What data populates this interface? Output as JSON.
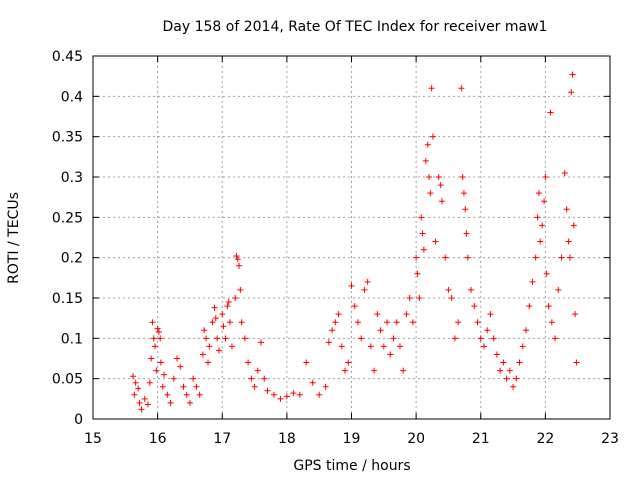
{
  "chart_data": {
    "type": "scatter",
    "title": "Day 158 of 2014, Rate Of TEC Index for receiver maw1",
    "xlabel": "GPS time / hours",
    "ylabel": "ROTI / TECUs",
    "xlim": [
      15,
      23
    ],
    "ylim": [
      0,
      0.45
    ],
    "x_ticks": [
      "15",
      "16",
      "17",
      "18",
      "19",
      "20",
      "21",
      "22",
      "23"
    ],
    "y_ticks": [
      "0",
      "0.05",
      "0.1",
      "0.15",
      "0.2",
      "0.25",
      "0.3",
      "0.35",
      "0.4",
      "0.45"
    ],
    "grid": true,
    "marker": "plus",
    "color": "#ff0000",
    "series": [
      {
        "name": "maw1",
        "points": [
          [
            15.62,
            0.053
          ],
          [
            15.64,
            0.03
          ],
          [
            15.66,
            0.045
          ],
          [
            15.7,
            0.038
          ],
          [
            15.72,
            0.02
          ],
          [
            15.75,
            0.012
          ],
          [
            15.8,
            0.025
          ],
          [
            15.85,
            0.018
          ],
          [
            15.88,
            0.045
          ],
          [
            15.9,
            0.075
          ],
          [
            15.92,
            0.12
          ],
          [
            15.94,
            0.1
          ],
          [
            15.96,
            0.09
          ],
          [
            15.98,
            0.06
          ],
          [
            16.0,
            0.112
          ],
          [
            16.02,
            0.108
          ],
          [
            16.04,
            0.1
          ],
          [
            16.05,
            0.07
          ],
          [
            16.08,
            0.04
          ],
          [
            16.1,
            0.055
          ],
          [
            16.15,
            0.03
          ],
          [
            16.2,
            0.02
          ],
          [
            16.25,
            0.05
          ],
          [
            16.3,
            0.075
          ],
          [
            16.35,
            0.065
          ],
          [
            16.4,
            0.04
          ],
          [
            16.45,
            0.03
          ],
          [
            16.5,
            0.02
          ],
          [
            16.55,
            0.05
          ],
          [
            16.6,
            0.04
          ],
          [
            16.65,
            0.03
          ],
          [
            16.7,
            0.08
          ],
          [
            16.72,
            0.11
          ],
          [
            16.75,
            0.1
          ],
          [
            16.78,
            0.07
          ],
          [
            16.8,
            0.09
          ],
          [
            16.85,
            0.12
          ],
          [
            16.88,
            0.138
          ],
          [
            16.9,
            0.125
          ],
          [
            16.92,
            0.1
          ],
          [
            16.95,
            0.085
          ],
          [
            17.0,
            0.13
          ],
          [
            17.02,
            0.115
          ],
          [
            17.05,
            0.1
          ],
          [
            17.08,
            0.14
          ],
          [
            17.1,
            0.145
          ],
          [
            17.12,
            0.12
          ],
          [
            17.15,
            0.09
          ],
          [
            17.2,
            0.15
          ],
          [
            17.22,
            0.202
          ],
          [
            17.24,
            0.198
          ],
          [
            17.26,
            0.19
          ],
          [
            17.28,
            0.16
          ],
          [
            17.3,
            0.12
          ],
          [
            17.35,
            0.1
          ],
          [
            17.4,
            0.07
          ],
          [
            17.45,
            0.05
          ],
          [
            17.5,
            0.04
          ],
          [
            17.55,
            0.06
          ],
          [
            17.6,
            0.095
          ],
          [
            17.65,
            0.05
          ],
          [
            17.7,
            0.035
          ],
          [
            17.8,
            0.03
          ],
          [
            17.9,
            0.025
          ],
          [
            18.0,
            0.028
          ],
          [
            18.1,
            0.032
          ],
          [
            18.2,
            0.03
          ],
          [
            18.3,
            0.07
          ],
          [
            18.4,
            0.045
          ],
          [
            18.5,
            0.03
          ],
          [
            18.6,
            0.04
          ],
          [
            18.65,
            0.095
          ],
          [
            18.7,
            0.11
          ],
          [
            18.75,
            0.12
          ],
          [
            18.8,
            0.13
          ],
          [
            18.85,
            0.09
          ],
          [
            18.9,
            0.06
          ],
          [
            18.95,
            0.07
          ],
          [
            19.0,
            0.165
          ],
          [
            19.05,
            0.14
          ],
          [
            19.1,
            0.12
          ],
          [
            19.15,
            0.1
          ],
          [
            19.2,
            0.16
          ],
          [
            19.25,
            0.17
          ],
          [
            19.3,
            0.09
          ],
          [
            19.35,
            0.06
          ],
          [
            19.4,
            0.13
          ],
          [
            19.45,
            0.11
          ],
          [
            19.5,
            0.09
          ],
          [
            19.55,
            0.12
          ],
          [
            19.6,
            0.08
          ],
          [
            19.65,
            0.1
          ],
          [
            19.7,
            0.12
          ],
          [
            19.75,
            0.09
          ],
          [
            19.8,
            0.06
          ],
          [
            19.85,
            0.13
          ],
          [
            19.9,
            0.15
          ],
          [
            19.95,
            0.12
          ],
          [
            20.0,
            0.2
          ],
          [
            20.02,
            0.18
          ],
          [
            20.05,
            0.15
          ],
          [
            20.08,
            0.25
          ],
          [
            20.1,
            0.23
          ],
          [
            20.12,
            0.21
          ],
          [
            20.15,
            0.32
          ],
          [
            20.18,
            0.34
          ],
          [
            20.2,
            0.3
          ],
          [
            20.22,
            0.28
          ],
          [
            20.24,
            0.41
          ],
          [
            20.26,
            0.35
          ],
          [
            20.3,
            0.22
          ],
          [
            20.35,
            0.3
          ],
          [
            20.38,
            0.29
          ],
          [
            20.4,
            0.27
          ],
          [
            20.45,
            0.2
          ],
          [
            20.5,
            0.16
          ],
          [
            20.55,
            0.15
          ],
          [
            20.6,
            0.1
          ],
          [
            20.65,
            0.12
          ],
          [
            20.7,
            0.41
          ],
          [
            20.72,
            0.3
          ],
          [
            20.74,
            0.28
          ],
          [
            20.76,
            0.26
          ],
          [
            20.78,
            0.23
          ],
          [
            20.8,
            0.2
          ],
          [
            20.85,
            0.16
          ],
          [
            20.9,
            0.14
          ],
          [
            20.95,
            0.12
          ],
          [
            21.0,
            0.1
          ],
          [
            21.05,
            0.09
          ],
          [
            21.1,
            0.11
          ],
          [
            21.15,
            0.13
          ],
          [
            21.2,
            0.1
          ],
          [
            21.25,
            0.08
          ],
          [
            21.3,
            0.06
          ],
          [
            21.35,
            0.07
          ],
          [
            21.4,
            0.05
          ],
          [
            21.45,
            0.06
          ],
          [
            21.5,
            0.04
          ],
          [
            21.55,
            0.05
          ],
          [
            21.6,
            0.07
          ],
          [
            21.65,
            0.09
          ],
          [
            21.7,
            0.11
          ],
          [
            21.75,
            0.14
          ],
          [
            21.8,
            0.17
          ],
          [
            21.85,
            0.2
          ],
          [
            21.88,
            0.25
          ],
          [
            21.9,
            0.28
          ],
          [
            21.92,
            0.22
          ],
          [
            21.95,
            0.24
          ],
          [
            21.98,
            0.27
          ],
          [
            22.0,
            0.3
          ],
          [
            22.02,
            0.18
          ],
          [
            22.05,
            0.14
          ],
          [
            22.08,
            0.38
          ],
          [
            22.1,
            0.12
          ],
          [
            22.15,
            0.1
          ],
          [
            22.2,
            0.16
          ],
          [
            22.25,
            0.2
          ],
          [
            22.3,
            0.305
          ],
          [
            22.33,
            0.26
          ],
          [
            22.36,
            0.22
          ],
          [
            22.38,
            0.2
          ],
          [
            22.4,
            0.405
          ],
          [
            22.42,
            0.427
          ],
          [
            22.44,
            0.24
          ],
          [
            22.46,
            0.13
          ],
          [
            22.48,
            0.07
          ]
        ]
      }
    ]
  }
}
